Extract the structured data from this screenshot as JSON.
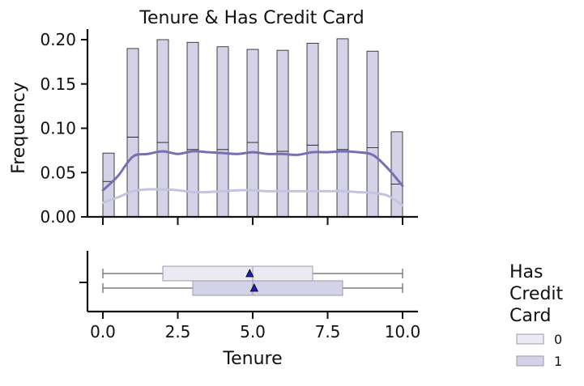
{
  "colors": {
    "hist_fill": "#d4d2e6",
    "hist_edge": "#1a1a1a",
    "kde_1": "#7670b3",
    "kde_0": "#c3c3df",
    "box_0_fill": "#ebeaf3",
    "box_1_fill": "#d4d2e6",
    "whisker": "#666666",
    "mean_marker": "#1c1cbf",
    "axis": "#111111"
  },
  "chart_data": {
    "type": "histogram + kde + boxplot",
    "title": "Tenure & Has Credit Card",
    "xlabel": "Tenure",
    "ylabel": "Frequency",
    "xlim": [
      -0.5,
      10.5
    ],
    "ylim": [
      0,
      0.21
    ],
    "x_ticks": [
      "0.0",
      "2.5",
      "5.0",
      "7.5",
      "10.0"
    ],
    "y_ticks": [
      "0.00",
      "0.05",
      "0.10",
      "0.15",
      "0.20"
    ],
    "legend": {
      "title": "Has Credit Card",
      "title_lines": [
        "Has",
        "Credit",
        "Card"
      ],
      "entries": [
        "0",
        "1"
      ],
      "placement": "lower-right outside"
    },
    "histogram": {
      "stacked": true,
      "tenure": [
        0,
        1,
        2,
        3,
        4,
        5,
        6,
        7,
        8,
        9,
        10
      ],
      "series": [
        {
          "name": "0",
          "values": [
            0.032,
            0.1,
            0.116,
            0.121,
            0.116,
            0.105,
            0.114,
            0.115,
            0.125,
            0.109,
            0.059
          ]
        },
        {
          "name": "1",
          "values": [
            0.04,
            0.09,
            0.084,
            0.076,
            0.076,
            0.084,
            0.074,
            0.081,
            0.076,
            0.078,
            0.037
          ]
        }
      ]
    },
    "kde": [
      {
        "name": "1",
        "x": [
          0,
          0.5,
          1,
          1.5,
          2,
          2.5,
          3,
          3.5,
          4,
          4.5,
          5,
          5.5,
          6,
          6.5,
          7,
          7.5,
          8,
          8.5,
          9,
          9.5,
          10
        ],
        "y": [
          0.03,
          0.046,
          0.068,
          0.071,
          0.074,
          0.071,
          0.074,
          0.073,
          0.072,
          0.071,
          0.073,
          0.071,
          0.071,
          0.07,
          0.073,
          0.073,
          0.074,
          0.073,
          0.07,
          0.055,
          0.035
        ]
      },
      {
        "name": "0",
        "x": [
          0,
          0.5,
          1,
          1.5,
          2,
          2.5,
          3,
          3.5,
          4,
          4.5,
          5,
          5.5,
          6,
          6.5,
          7,
          7.5,
          8,
          8.5,
          9,
          9.5,
          10
        ],
        "y": [
          0.016,
          0.022,
          0.029,
          0.031,
          0.031,
          0.03,
          0.028,
          0.028,
          0.029,
          0.03,
          0.03,
          0.029,
          0.029,
          0.029,
          0.029,
          0.029,
          0.029,
          0.028,
          0.027,
          0.024,
          0.013
        ]
      }
    ],
    "boxplot": [
      {
        "name": "0",
        "min": 0,
        "q1": 2,
        "median": 5,
        "q3": 7,
        "max": 10,
        "mean": 4.9
      },
      {
        "name": "1",
        "min": 0,
        "q1": 3,
        "median": 5,
        "q3": 8,
        "max": 10,
        "mean": 5.05
      }
    ]
  }
}
